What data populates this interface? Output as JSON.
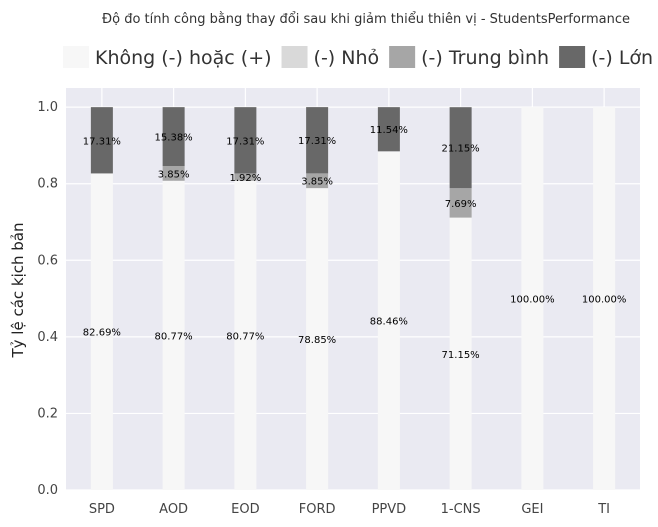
{
  "chart_data": {
    "type": "bar",
    "stacked": true,
    "title": "Độ đo tính công bằng thay đổi sau khi giảm thiểu thiên vị - StudentsPerformance",
    "xlabel": "",
    "ylabel": "Tỷ lệ các kịch bản",
    "ylim": [
      0,
      1.05
    ],
    "yticks": [
      "0.0",
      "0.2",
      "0.4",
      "0.6",
      "0.8",
      "1.0"
    ],
    "grid": true,
    "legend_position": "top",
    "categories": [
      "SPD",
      "AOD",
      "EOD",
      "FORD",
      "PPVD",
      "1-CNS",
      "GEI",
      "TI"
    ],
    "series": [
      {
        "name": "Không (-) hoặc (+)",
        "color": "#f7f7f7",
        "values": [
          0.8269,
          0.8077,
          0.8077,
          0.7885,
          0.8846,
          0.7115,
          1.0,
          1.0
        ],
        "labels": [
          "82.69%",
          "80.77%",
          "80.77%",
          "78.85%",
          "88.46%",
          "71.15%",
          "100.00%",
          "100.00%"
        ]
      },
      {
        "name": "(-) Nhỏ",
        "color": "#d9d9d9",
        "values": [
          0,
          0,
          0,
          0,
          0,
          0,
          0,
          0
        ],
        "labels": [
          "",
          "",
          "",
          "",
          "",
          "",
          "",
          ""
        ]
      },
      {
        "name": "(-) Trung bình",
        "color": "#a6a6a6",
        "values": [
          0,
          0.0385,
          0.0192,
          0.0385,
          0,
          0.0769,
          0,
          0
        ],
        "labels": [
          "",
          "3.85%",
          "1.92%",
          "3.85%",
          "",
          "7.69%",
          "",
          ""
        ]
      },
      {
        "name": "(-) Lớn",
        "color": "#686868",
        "values": [
          0.1731,
          0.1538,
          0.1731,
          0.1731,
          0.1154,
          0.2115,
          0,
          0
        ],
        "labels": [
          "17.31%",
          "15.38%",
          "17.31%",
          "17.31%",
          "11.54%",
          "21.15%",
          "",
          ""
        ]
      }
    ]
  }
}
